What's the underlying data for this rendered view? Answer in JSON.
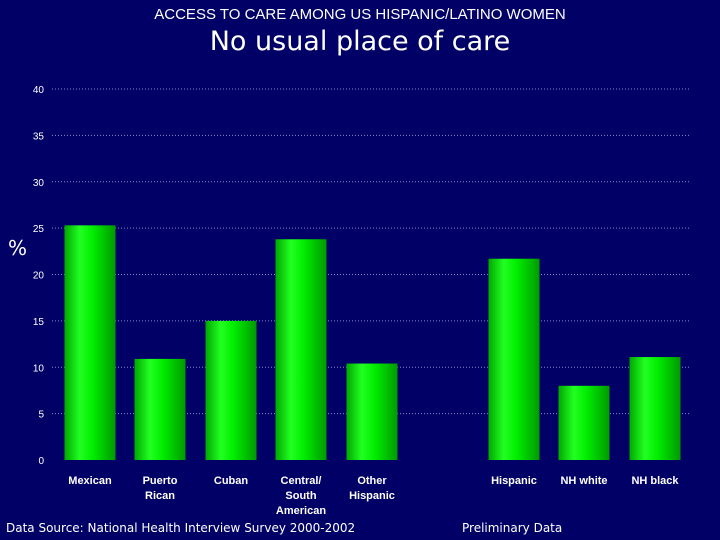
{
  "header": {
    "subtitle": "ACCESS TO CARE AMONG US HISPANIC/LATINO WOMEN",
    "title": "No usual place of care"
  },
  "footer": {
    "source": "Data Source:  National Health Interview Survey 2000-2002",
    "note": "Preliminary Data"
  },
  "colors": {
    "background": "#000066",
    "bar": "#00dd00",
    "grid": "#8a8ac8"
  },
  "chart_data": {
    "type": "bar",
    "title": "No usual place of care",
    "xlabel": "",
    "ylabel": "%",
    "ylim": [
      0,
      40
    ],
    "yticks": [
      0,
      5,
      10,
      15,
      20,
      25,
      30,
      35,
      40
    ],
    "grid": true,
    "categories": [
      [
        "Mexican"
      ],
      [
        "Puerto",
        "Rican"
      ],
      [
        "Cuban"
      ],
      [
        "Central/",
        "South",
        "American"
      ],
      [
        "Other",
        "Hispanic"
      ],
      [
        "Hispanic"
      ],
      [
        "NH white"
      ],
      [
        "NH black"
      ]
    ],
    "values": [
      25.3,
      10.9,
      15.0,
      23.8,
      10.4,
      21.7,
      8.0,
      11.1
    ]
  }
}
